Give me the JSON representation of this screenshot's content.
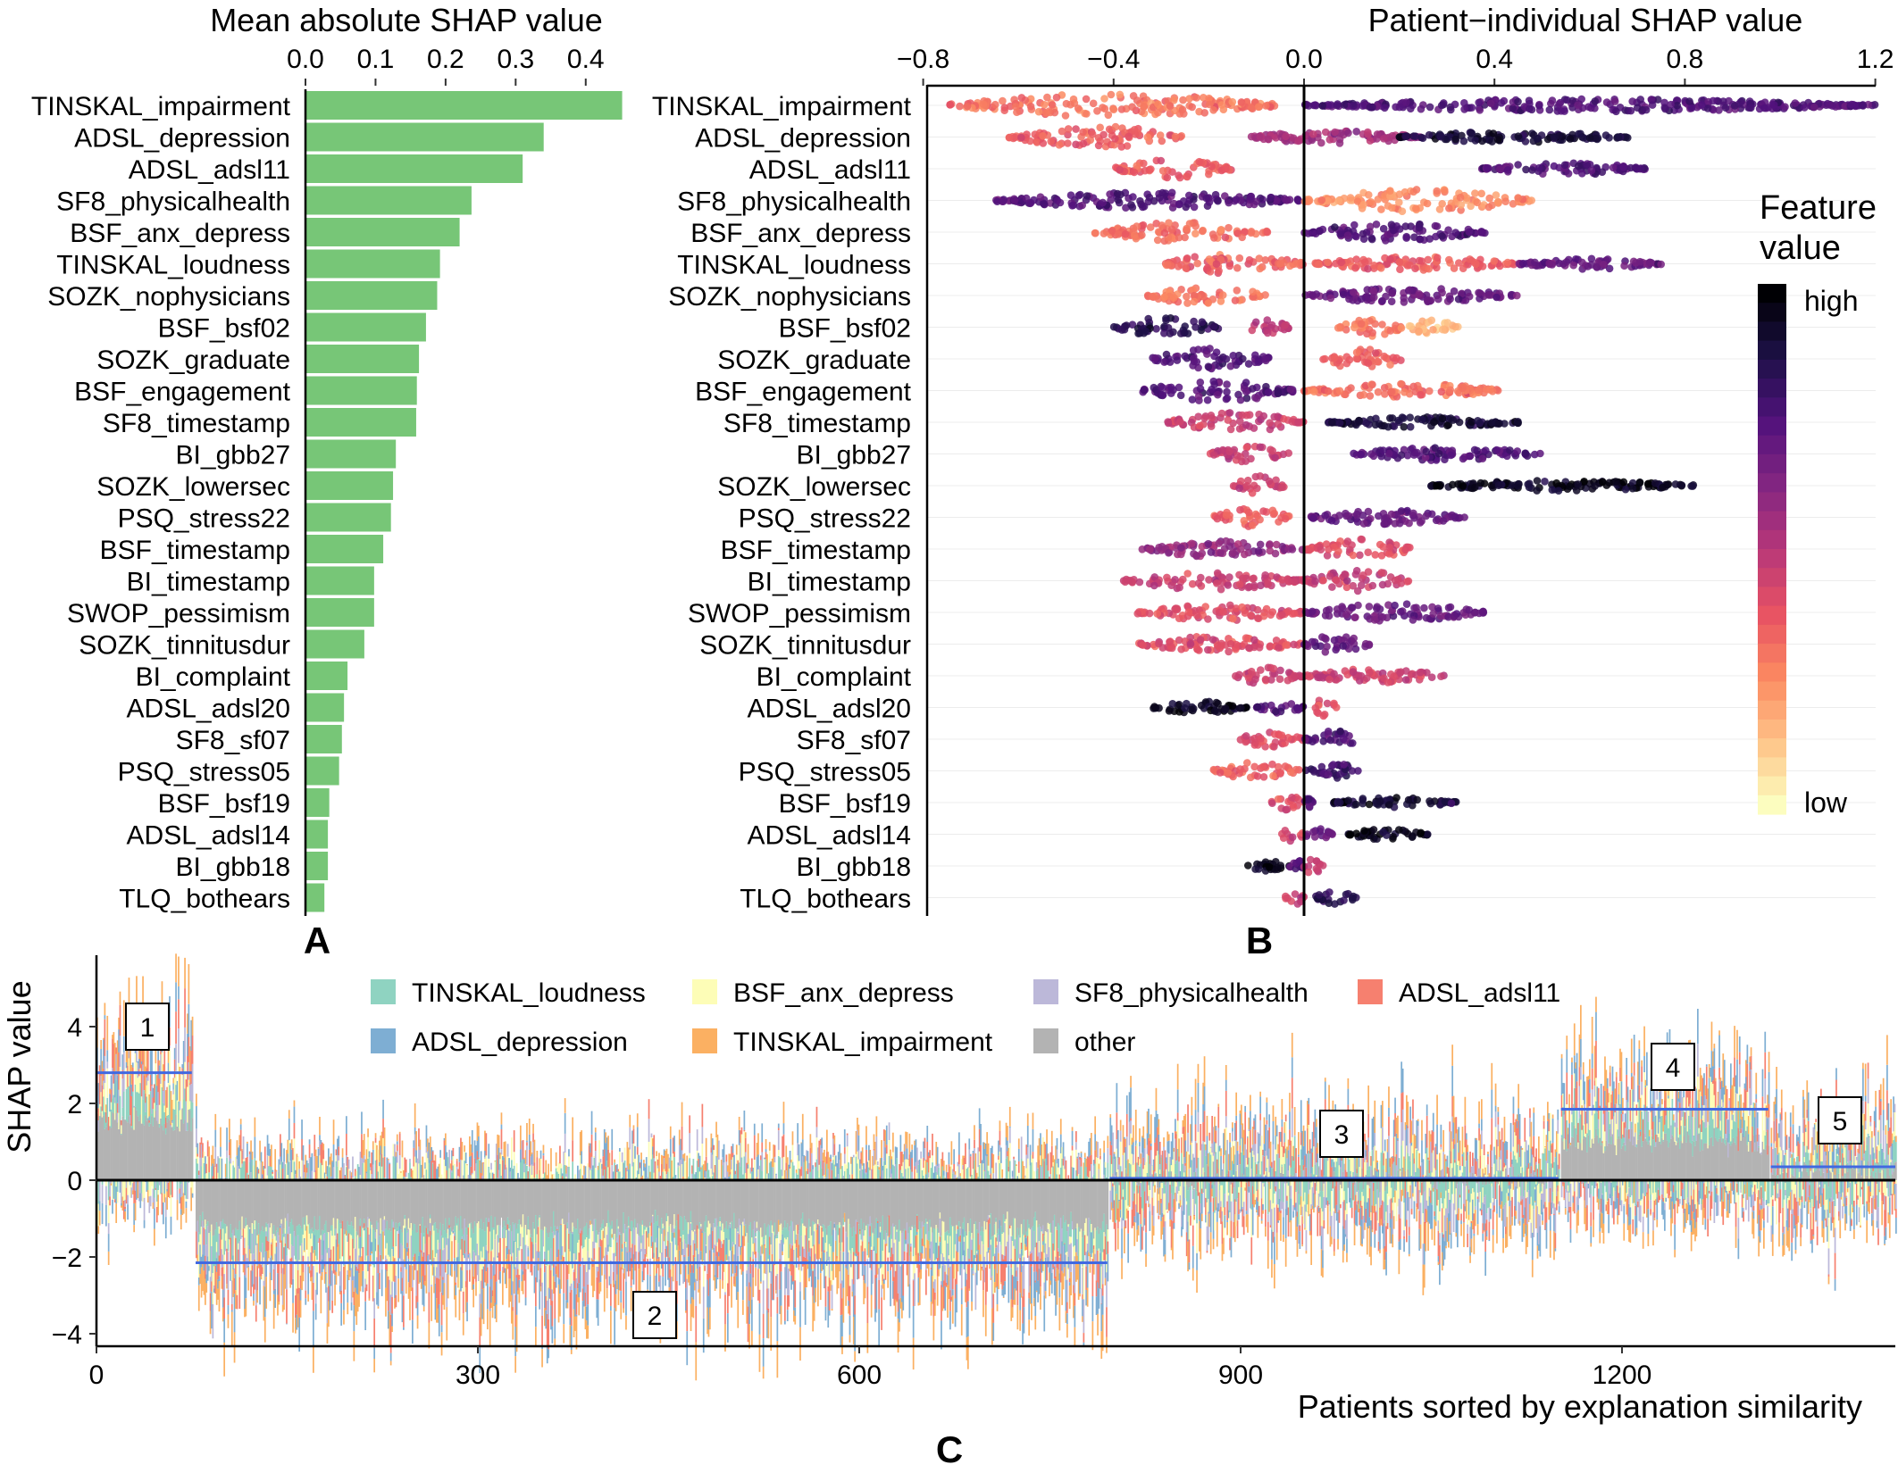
{
  "chart_data": [
    {
      "panel": "A",
      "type": "bar",
      "orientation": "horizontal",
      "title": "Mean absolute SHAP value",
      "xlim": [
        0,
        0.45
      ],
      "xticks": [
        "0.0",
        "0.1",
        "0.2",
        "0.3",
        "0.4"
      ],
      "bar_color": "#77c677",
      "categories": [
        "TINSKAL_impairment",
        "ADSL_depression",
        "ADSL_adsl11",
        "SF8_physicalhealth",
        "BSF_anx_depress",
        "TINSKAL_loudness",
        "SOZK_nophysicians",
        "BSF_bsf02",
        "SOZK_graduate",
        "BSF_engagement",
        "SF8_timestamp",
        "BI_gbb27",
        "SOZK_lowersec",
        "PSQ_stress22",
        "BSF_timestamp",
        "BI_timestamp",
        "SWOP_pessimism",
        "SOZK_tinnitusdur",
        "BI_complaint",
        "ADSL_adsl20",
        "SF8_sf07",
        "PSQ_stress05",
        "BSF_bsf19",
        "ADSL_adsl14",
        "BI_gbb18",
        "TLQ_bothears"
      ],
      "values": [
        0.452,
        0.34,
        0.31,
        0.237,
        0.22,
        0.192,
        0.188,
        0.172,
        0.162,
        0.159,
        0.158,
        0.129,
        0.125,
        0.122,
        0.111,
        0.098,
        0.098,
        0.084,
        0.06,
        0.055,
        0.052,
        0.048,
        0.034,
        0.032,
        0.032,
        0.027
      ],
      "panel_label": "A"
    },
    {
      "panel": "B",
      "type": "scatter",
      "subtype": "beeswarm",
      "title": "Patient−individual SHAP value",
      "xlim": [
        -0.8,
        1.2
      ],
      "xticks": [
        "−0.8",
        "−0.4",
        "0.0",
        "0.4",
        "0.8",
        "1.2"
      ],
      "colorbar": {
        "title_line1": "Feature",
        "title_line2": "value",
        "high_label": "high",
        "low_label": "low",
        "colors": [
          "#fcfdbf",
          "#fec287",
          "#fc8961",
          "#e75263",
          "#b73779",
          "#832681",
          "#51127c",
          "#1d1147",
          "#000004"
        ]
      },
      "features": [
        {
          "name": "TINSKAL_impairment",
          "segments": [
            {
              "min": -0.75,
              "max": -0.05,
              "w": 13,
              "c": 0.3
            },
            {
              "min": 0.0,
              "max": 1.2,
              "w": 7,
              "c": 0.75
            }
          ]
        },
        {
          "name": "ADSL_depression",
          "segments": [
            {
              "min": -0.62,
              "max": -0.25,
              "w": 12,
              "c": 0.35
            },
            {
              "min": -0.12,
              "max": 0.25,
              "w": 7,
              "c": 0.55
            },
            {
              "min": 0.2,
              "max": 0.68,
              "w": 6,
              "c": 0.9
            }
          ]
        },
        {
          "name": "ADSL_adsl11",
          "segments": [
            {
              "min": -0.4,
              "max": -0.15,
              "w": 11,
              "c": 0.35
            },
            {
              "min": 0.37,
              "max": 0.72,
              "w": 7,
              "c": 0.75
            }
          ]
        },
        {
          "name": "SF8_physicalhealth",
          "segments": [
            {
              "min": -0.65,
              "max": 0.0,
              "w": 9,
              "c": 0.75
            },
            {
              "min": 0.0,
              "max": 0.48,
              "w": 13,
              "c": 0.25
            }
          ]
        },
        {
          "name": "BSF_anx_depress",
          "segments": [
            {
              "min": -0.44,
              "max": -0.07,
              "w": 11,
              "c": 0.3
            },
            {
              "min": 0.0,
              "max": 0.38,
              "w": 10,
              "c": 0.75
            }
          ]
        },
        {
          "name": "TINSKAL_loudness",
          "segments": [
            {
              "min": -0.3,
              "max": 0.0,
              "w": 11,
              "c": 0.35
            },
            {
              "min": 0.02,
              "max": 0.45,
              "w": 8,
              "c": 0.35
            },
            {
              "min": 0.45,
              "max": 0.75,
              "w": 6,
              "c": 0.7
            }
          ]
        },
        {
          "name": "SOZK_nophysicians",
          "segments": [
            {
              "min": -0.33,
              "max": -0.08,
              "w": 11,
              "c": 0.3
            },
            {
              "min": 0.0,
              "max": 0.45,
              "w": 8,
              "c": 0.7
            }
          ]
        },
        {
          "name": "BSF_bsf02",
          "segments": [
            {
              "min": -0.4,
              "max": -0.18,
              "w": 11,
              "c": 0.85
            },
            {
              "min": -0.12,
              "max": -0.03,
              "w": 10,
              "c": 0.5
            },
            {
              "min": 0.07,
              "max": 0.21,
              "w": 11,
              "c": 0.3
            },
            {
              "min": 0.21,
              "max": 0.33,
              "w": 8,
              "c": 0.15
            }
          ]
        },
        {
          "name": "SOZK_graduate",
          "segments": [
            {
              "min": -0.32,
              "max": -0.07,
              "w": 12,
              "c": 0.75
            },
            {
              "min": 0.04,
              "max": 0.21,
              "w": 12,
              "c": 0.35
            }
          ]
        },
        {
          "name": "BSF_engagement",
          "segments": [
            {
              "min": -0.34,
              "max": -0.02,
              "w": 12,
              "c": 0.75
            },
            {
              "min": 0.0,
              "max": 0.42,
              "w": 8,
              "c": 0.3
            }
          ]
        },
        {
          "name": "SF8_timestamp",
          "segments": [
            {
              "min": -0.29,
              "max": 0.0,
              "w": 11,
              "c": 0.45
            },
            {
              "min": 0.05,
              "max": 0.45,
              "w": 6,
              "c": 0.9
            }
          ]
        },
        {
          "name": "BI_gbb27",
          "segments": [
            {
              "min": -0.2,
              "max": -0.03,
              "w": 9,
              "c": 0.45
            },
            {
              "min": 0.1,
              "max": 0.5,
              "w": 8,
              "c": 0.75
            }
          ]
        },
        {
          "name": "SOZK_lowersec",
          "segments": [
            {
              "min": -0.15,
              "max": -0.04,
              "w": 11,
              "c": 0.45
            },
            {
              "min": 0.26,
              "max": 0.82,
              "w": 6,
              "c": 0.95
            }
          ]
        },
        {
          "name": "PSQ_stress22",
          "segments": [
            {
              "min": -0.19,
              "max": -0.03,
              "w": 12,
              "c": 0.35
            },
            {
              "min": 0.01,
              "max": 0.34,
              "w": 8,
              "c": 0.7
            }
          ]
        },
        {
          "name": "BSF_timestamp",
          "segments": [
            {
              "min": -0.34,
              "max": 0.0,
              "w": 9,
              "c": 0.6
            },
            {
              "min": 0.0,
              "max": 0.23,
              "w": 12,
              "c": 0.4
            }
          ]
        },
        {
          "name": "BI_timestamp",
          "segments": [
            {
              "min": -0.38,
              "max": 0.0,
              "w": 10,
              "c": 0.45
            },
            {
              "min": 0.0,
              "max": 0.22,
              "w": 12,
              "c": 0.45
            }
          ]
        },
        {
          "name": "SWOP_pessimism",
          "segments": [
            {
              "min": -0.35,
              "max": 0.0,
              "w": 9,
              "c": 0.4
            },
            {
              "min": 0.0,
              "max": 0.38,
              "w": 10,
              "c": 0.7
            }
          ]
        },
        {
          "name": "SOZK_tinnitusdur",
          "segments": [
            {
              "min": -0.35,
              "max": 0.0,
              "w": 9,
              "c": 0.4
            },
            {
              "min": 0.0,
              "max": 0.14,
              "w": 11,
              "c": 0.7
            }
          ]
        },
        {
          "name": "BI_complaint",
          "segments": [
            {
              "min": -0.15,
              "max": 0.0,
              "w": 10,
              "c": 0.45
            },
            {
              "min": 0.0,
              "max": 0.3,
              "w": 8,
              "c": 0.45
            }
          ]
        },
        {
          "name": "ADSL_adsl20",
          "segments": [
            {
              "min": -0.32,
              "max": -0.12,
              "w": 7,
              "c": 0.95
            },
            {
              "min": -0.1,
              "max": 0.0,
              "w": 7,
              "c": 0.75
            },
            {
              "min": 0.02,
              "max": 0.07,
              "w": 11,
              "c": 0.4
            }
          ]
        },
        {
          "name": "SF8_sf07",
          "segments": [
            {
              "min": -0.14,
              "max": 0.0,
              "w": 9,
              "c": 0.4
            },
            {
              "min": 0.0,
              "max": 0.12,
              "w": 10,
              "c": 0.75
            }
          ]
        },
        {
          "name": "PSQ_stress05",
          "segments": [
            {
              "min": -0.19,
              "max": -0.01,
              "w": 10,
              "c": 0.35
            },
            {
              "min": 0.0,
              "max": 0.13,
              "w": 8,
              "c": 0.8
            }
          ]
        },
        {
          "name": "BSF_bsf19",
          "segments": [
            {
              "min": -0.07,
              "max": 0.0,
              "w": 9,
              "c": 0.4
            },
            {
              "min": 0.0,
              "max": 0.02,
              "w": 6,
              "c": 0.75
            },
            {
              "min": 0.06,
              "max": 0.32,
              "w": 6,
              "c": 0.9
            }
          ]
        },
        {
          "name": "ADSL_adsl14",
          "segments": [
            {
              "min": -0.05,
              "max": 0.0,
              "w": 9,
              "c": 0.45
            },
            {
              "min": 0.0,
              "max": 0.06,
              "w": 7,
              "c": 0.7
            },
            {
              "min": 0.09,
              "max": 0.26,
              "w": 6,
              "c": 0.95
            }
          ]
        },
        {
          "name": "BI_gbb18",
          "segments": [
            {
              "min": -0.12,
              "max": -0.03,
              "w": 6,
              "c": 0.95
            },
            {
              "min": -0.03,
              "max": 0.0,
              "w": 7,
              "c": 0.75
            },
            {
              "min": 0.0,
              "max": 0.04,
              "w": 10,
              "c": 0.45
            }
          ]
        },
        {
          "name": "TLQ_bothears",
          "segments": [
            {
              "min": -0.04,
              "max": 0.0,
              "w": 10,
              "c": 0.45
            },
            {
              "min": 0.02,
              "max": 0.11,
              "w": 8,
              "c": 0.85
            }
          ]
        }
      ],
      "panel_label": "B"
    },
    {
      "panel": "C",
      "type": "bar",
      "subtype": "stacked",
      "xlabel": "Patients sorted by explanation similarity",
      "ylabel": "SHAP value",
      "xlim": [
        0,
        1415
      ],
      "ylim": [
        -4.2,
        5.3
      ],
      "xticks": [
        0,
        300,
        600,
        900,
        1200
      ],
      "yticks": [
        -4,
        -2,
        0,
        2,
        4
      ],
      "legend": {
        "placement": "top",
        "items": [
          {
            "label": "TINSKAL_loudness",
            "color": "#8fd3c1"
          },
          {
            "label": "BSF_anx_depress",
            "color": "#fdfdb7"
          },
          {
            "label": "SF8_physicalhealth",
            "color": "#bcb8d9"
          },
          {
            "label": "ADSL_adsl11",
            "color": "#f6806f"
          },
          {
            "label": "ADSL_depression",
            "color": "#7eaed3"
          },
          {
            "label": "TINSKAL_impairment",
            "color": "#fbb062"
          },
          {
            "label": "other",
            "color": "#b3b3b3"
          }
        ]
      },
      "mean_line_color": "#4169e1",
      "clusters": [
        {
          "label": "1",
          "start": 0,
          "end": 75,
          "mean": 2.8
        },
        {
          "label": "2",
          "start": 78,
          "end": 795,
          "mean": -2.15
        },
        {
          "label": "3",
          "start": 797,
          "end": 1150,
          "mean": 0.05
        },
        {
          "label": "4",
          "start": 1152,
          "end": 1315,
          "mean": 1.85
        },
        {
          "label": "5",
          "start": 1317,
          "end": 1415,
          "mean": 0.35
        }
      ],
      "panel_label": "C"
    }
  ]
}
